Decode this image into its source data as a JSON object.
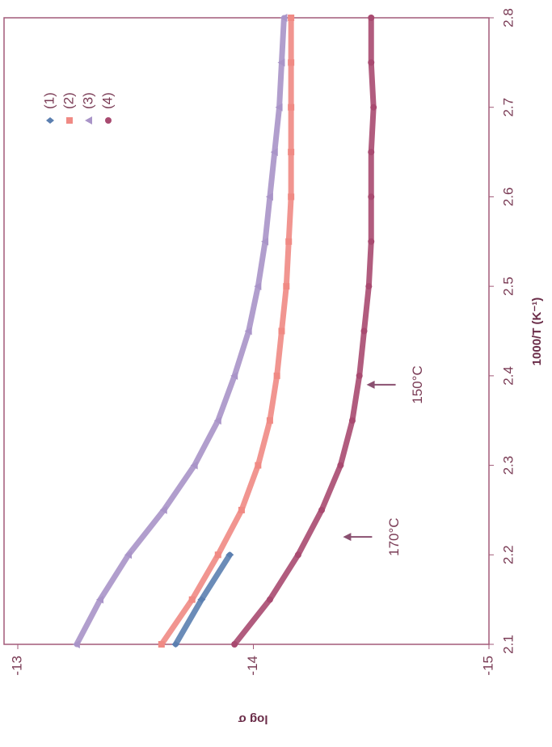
{
  "chart_data": {
    "type": "scatter",
    "x_label": "1000/T (K⁻¹)",
    "y_label": "log σ",
    "x": [
      2.1,
      2.15,
      2.2,
      2.25,
      2.3,
      2.35,
      2.4,
      2.45,
      2.5,
      2.55,
      2.6,
      2.65,
      2.7,
      2.75,
      2.8
    ],
    "series": [
      {
        "name": "(1)",
        "color": "#5b7fb0",
        "marker": "diamond",
        "values": [
          -13.67,
          -13.78,
          -13.9,
          null,
          null,
          null,
          null,
          null,
          null,
          null,
          null,
          null,
          null,
          null,
          null
        ]
      },
      {
        "name": "(2)",
        "color": "#f08a84",
        "marker": "square",
        "values": [
          -13.61,
          -13.74,
          -13.85,
          -13.95,
          -14.02,
          -14.07,
          -14.1,
          -14.12,
          -14.14,
          -14.15,
          -14.16,
          -14.16,
          -14.16,
          -14.16,
          -14.16
        ]
      },
      {
        "name": "(3)",
        "color": "#a994c8",
        "marker": "triangle",
        "values": [
          -13.25,
          -13.35,
          -13.47,
          -13.62,
          -13.75,
          -13.85,
          -13.92,
          -13.98,
          -14.02,
          -14.05,
          -14.07,
          -14.09,
          -14.11,
          -14.12,
          -14.13
        ]
      },
      {
        "name": "(4)",
        "color": "#a84a70",
        "marker": "circle",
        "values": [
          -13.92,
          -14.07,
          -14.19,
          -14.29,
          -14.37,
          -14.42,
          -14.45,
          -14.47,
          -14.49,
          -14.5,
          -14.5,
          -14.5,
          -14.51,
          -14.5,
          -14.5
        ]
      }
    ],
    "annotations": [
      {
        "text": "170°C",
        "x": 2.22,
        "y": -14.6
      },
      {
        "text": "150°C",
        "x": 2.39,
        "y": -14.7
      }
    ],
    "xlim": [
      2.1,
      2.8
    ],
    "xticks": [
      2.1,
      2.2,
      2.3,
      2.4,
      2.5,
      2.6,
      2.7,
      2.8
    ],
    "ylim": [
      -15,
      -13
    ],
    "yticks": [
      -13,
      -14,
      -15
    ]
  }
}
